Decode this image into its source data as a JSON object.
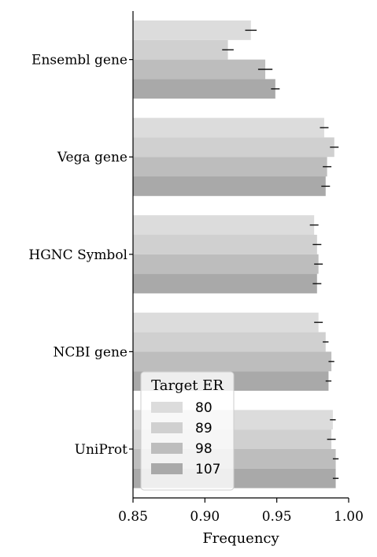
{
  "chart_data": {
    "type": "bar",
    "orientation": "horizontal",
    "title": "",
    "xlabel": "Frequency",
    "ylabel": "",
    "xlim": [
      0.85,
      1.0
    ],
    "xticks": [
      "0.85",
      "0.90",
      "0.95",
      "1.00"
    ],
    "categories": [
      "Ensembl gene",
      "Vega gene",
      "HGNC Symbol",
      "NCBI gene",
      "UniProt"
    ],
    "legend": {
      "title": "Target ER",
      "placement": "lower-left"
    },
    "grid": false,
    "series": [
      {
        "name": "80",
        "color": "#dcdcdc",
        "values": [
          0.932,
          0.983,
          0.976,
          0.979,
          0.989
        ],
        "errors": [
          0.004,
          0.003,
          0.003,
          0.003,
          0.002
        ]
      },
      {
        "name": "89",
        "color": "#d0d0d0",
        "values": [
          0.916,
          0.99,
          0.978,
          0.984,
          0.988
        ],
        "errors": [
          0.004,
          0.003,
          0.003,
          0.002,
          0.003
        ]
      },
      {
        "name": "98",
        "color": "#bdbdbd",
        "values": [
          0.942,
          0.985,
          0.979,
          0.988,
          0.991
        ],
        "errors": [
          0.005,
          0.003,
          0.003,
          0.002,
          0.002
        ]
      },
      {
        "name": "107",
        "color": "#a9a9a9",
        "values": [
          0.949,
          0.984,
          0.978,
          0.986,
          0.991
        ],
        "errors": [
          0.003,
          0.003,
          0.003,
          0.002,
          0.002
        ]
      }
    ]
  }
}
